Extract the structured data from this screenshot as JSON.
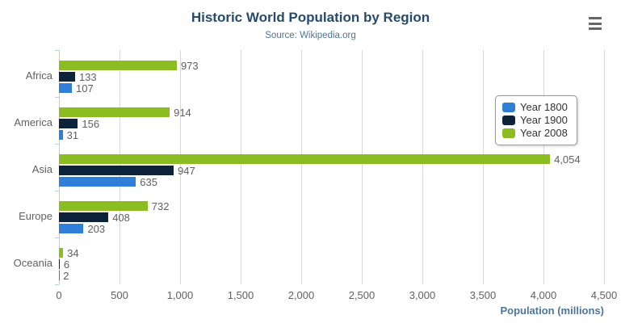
{
  "chart_data": {
    "type": "bar",
    "orientation": "horizontal",
    "title": "Historic World Population by Region",
    "subtitle": "Source: Wikipedia.org",
    "categories": [
      "Africa",
      "America",
      "Asia",
      "Europe",
      "Oceania"
    ],
    "series": [
      {
        "name": "Year 1800",
        "color": "#2f7ed8",
        "values": [
          107,
          31,
          635,
          203,
          2
        ]
      },
      {
        "name": "Year 1900",
        "color": "#0d233a",
        "values": [
          133,
          156,
          947,
          408,
          6
        ]
      },
      {
        "name": "Year 2008",
        "color": "#8bbc21",
        "values": [
          973,
          914,
          4054,
          732,
          34
        ]
      }
    ],
    "bar_order_top_to_bottom": [
      "Year 2008",
      "Year 1900",
      "Year 1800"
    ],
    "xlabel": "Population (millions)",
    "xlim": [
      0,
      4500
    ],
    "x_ticks": [
      0,
      500,
      1000,
      1500,
      2000,
      2500,
      3000,
      3500,
      4000,
      4500
    ],
    "grid": true,
    "data_labels": true,
    "legend_position": "right-inside"
  },
  "colors": {
    "title": "#274b6d",
    "subtitle": "#4d759e",
    "labels": "#606060",
    "gridline": "#d8d8d8",
    "category_axis_line": "#c0d0e0",
    "axis_title": "#4d759e",
    "legend_border": "#999999",
    "legend_text": "#333333",
    "menu_icon": "#666666",
    "background": "#ffffff"
  }
}
